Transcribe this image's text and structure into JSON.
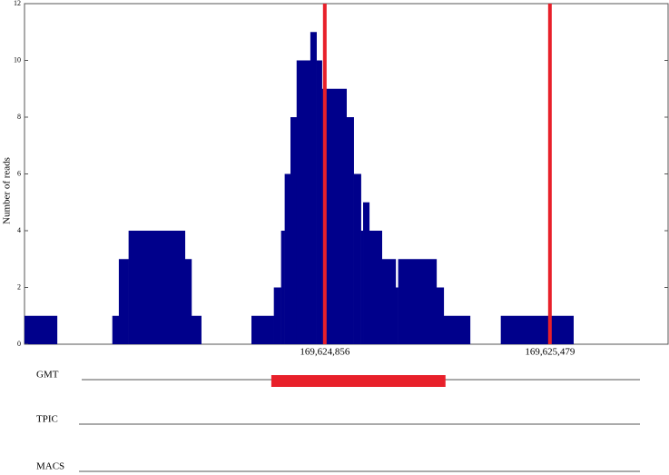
{
  "chart_data": {
    "type": "histogram",
    "y_label": "Number of reads",
    "bins": [
      169624025,
      169624115,
      169624268,
      169624286,
      169624313,
      169624469,
      169624487,
      169624514,
      169624653,
      169624715,
      169624735,
      169624745,
      169624761,
      169624778,
      169624816,
      169624833,
      169624848,
      169624916,
      169624936,
      169624956,
      169624962,
      169624979,
      169625014,
      169625052,
      169625059,
      169625165,
      169625185,
      169625258,
      169625343,
      169625544
    ],
    "values": [
      1,
      0,
      1,
      3,
      4,
      3,
      1,
      0,
      1,
      2,
      4,
      6,
      8,
      10,
      11,
      10,
      9,
      8,
      6,
      4,
      5,
      4,
      3,
      2,
      3,
      2,
      1,
      0,
      1
    ],
    "color": "#00008b",
    "xlim": [
      169624025,
      169625806
    ],
    "xticks": [
      {
        "value": 169624856,
        "label": "169,624,856"
      },
      {
        "value": 169625479,
        "label": "169,625,479"
      }
    ],
    "ylim": [
      0,
      12
    ],
    "yticks": [
      0,
      2,
      4,
      6,
      8,
      10,
      12
    ],
    "markers": [
      169624856,
      169625479
    ],
    "marker_color": "#e8202a",
    "tracks": [
      {
        "name": "GMT",
        "peaks": [
          [
            169624708,
            169625190
          ]
        ]
      },
      {
        "name": "TPIC",
        "peaks": []
      },
      {
        "name": "MACS",
        "peaks": []
      }
    ]
  }
}
